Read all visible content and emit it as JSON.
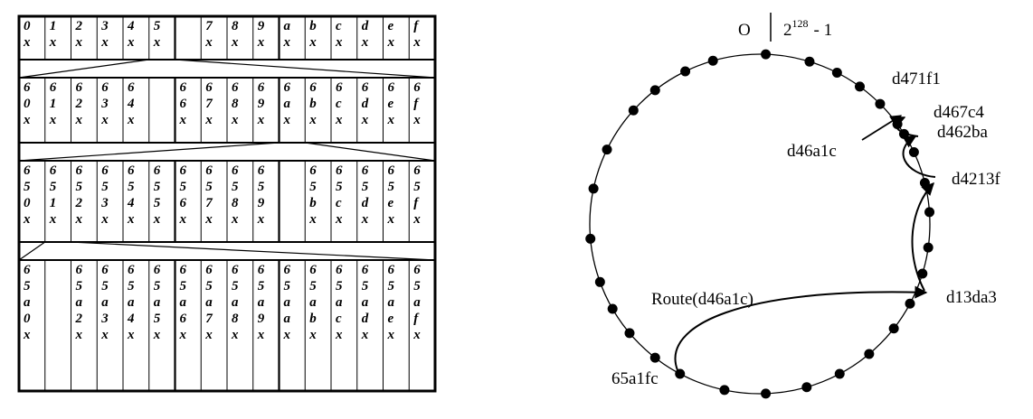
{
  "routing_table": {
    "rows": [
      {
        "cells": [
          "0x",
          "1x",
          "2x",
          "3x",
          "4x",
          "5x",
          "",
          "7x",
          "8x",
          "9x",
          "ax",
          "bx",
          "cx",
          "dx",
          "ex",
          "fx"
        ]
      },
      {
        "cells": [
          "60x",
          "61x",
          "62x",
          "63x",
          "64x",
          "",
          "66x",
          "67x",
          "68x",
          "69x",
          "6ax",
          "6bx",
          "6cx",
          "6dx",
          "6ex",
          "6fx"
        ]
      },
      {
        "cells": [
          "650x",
          "651x",
          "652x",
          "653x",
          "654x",
          "655x",
          "656x",
          "657x",
          "658x",
          "659x",
          "",
          "65bx",
          "65cx",
          "65dx",
          "65ex",
          "65fx"
        ]
      },
      {
        "cells": [
          "65a0x",
          "",
          "65a2x",
          "65a3x",
          "65a4x",
          "65a5x",
          "65a6x",
          "65a7x",
          "65a8x",
          "65a9x",
          "65aax",
          "65abx",
          "65acx",
          "65adx",
          "65aex",
          "65afx"
        ]
      }
    ]
  },
  "ring": {
    "top_left_label": "O",
    "top_right_base": "2",
    "top_right_exponent": "128",
    "top_right_suffix": "- 1",
    "route_label": "Route(d46a1c)",
    "key_label": "d46a1c",
    "node_labels": {
      "d471f1": "d471f1",
      "d467c4": "d467c4",
      "d462ba": "d462ba",
      "d4213f": "d4213f",
      "d13da3": "d13da3",
      "65a1fc": "65a1fc"
    }
  }
}
